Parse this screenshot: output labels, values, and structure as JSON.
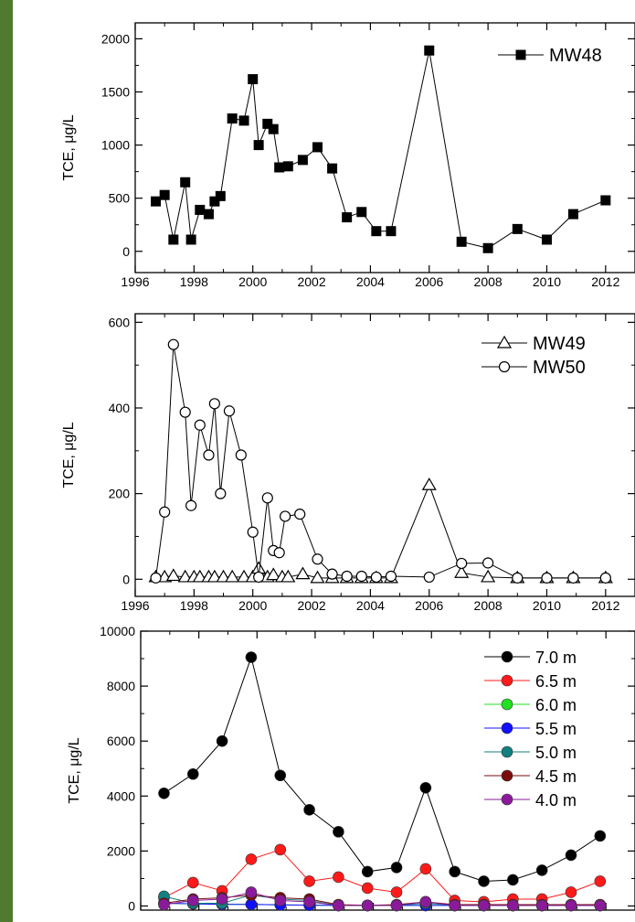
{
  "chart_data": [
    {
      "type": "line",
      "ylabel": "TCE, μg/L",
      "xlim": [
        1996,
        2013
      ],
      "ylim": [
        -200,
        2150
      ],
      "xticks": [
        1996,
        1998,
        2000,
        2002,
        2004,
        2006,
        2008,
        2010,
        2012
      ],
      "yticks": [
        0,
        500,
        1000,
        1500,
        2000
      ],
      "legend_position": "top-right",
      "series": [
        {
          "name": "MW48",
          "marker": "square",
          "filled": true,
          "color": "#000000",
          "x": [
            1996.7,
            1997.0,
            1997.3,
            1997.7,
            1997.9,
            1998.2,
            1998.5,
            1998.7,
            1998.9,
            1999.3,
            1999.7,
            2000.0,
            2000.2,
            2000.5,
            2000.7,
            2000.9,
            2001.2,
            2001.7,
            2002.2,
            2002.7,
            2003.2,
            2003.7,
            2004.2,
            2004.7,
            2006.0,
            2007.1,
            2008.0,
            2009.0,
            2010.0,
            2010.9,
            2012.0
          ],
          "y": [
            470,
            530,
            110,
            650,
            110,
            390,
            350,
            470,
            520,
            1250,
            1230,
            1620,
            1000,
            1200,
            1150,
            790,
            800,
            860,
            980,
            780,
            320,
            370,
            190,
            190,
            1890,
            90,
            30,
            210,
            110,
            350,
            480
          ]
        }
      ]
    },
    {
      "type": "line",
      "ylabel": "TCE, μg/L",
      "xlim": [
        1996,
        2013
      ],
      "ylim": [
        -40,
        620
      ],
      "xticks": [
        1996,
        1998,
        2000,
        2002,
        2004,
        2006,
        2008,
        2010,
        2012
      ],
      "yticks": [
        0,
        200,
        400,
        600
      ],
      "legend_position": "top-right",
      "series": [
        {
          "name": "MW49",
          "marker": "triangle",
          "filled": false,
          "color": "#000000",
          "x": [
            1996.7,
            1997.0,
            1997.3,
            1997.7,
            1998.0,
            1998.2,
            1998.5,
            1998.7,
            1999.0,
            1999.3,
            1999.7,
            2000.0,
            2000.2,
            2000.5,
            2000.7,
            2001.0,
            2001.2,
            2001.7,
            2002.2,
            2002.7,
            2003.2,
            2003.7,
            2004.2,
            2004.7,
            2006.0,
            2007.1,
            2008.0,
            2009.0,
            2010.0,
            2010.9,
            2012.0
          ],
          "y": [
            5,
            5,
            8,
            5,
            5,
            5,
            5,
            5,
            5,
            5,
            5,
            5,
            25,
            5,
            10,
            5,
            5,
            12,
            3,
            3,
            3,
            3,
            3,
            3,
            220,
            15,
            5,
            3,
            3,
            3,
            3
          ]
        },
        {
          "name": "MW50",
          "marker": "circle",
          "filled": false,
          "color": "#000000",
          "x": [
            1996.7,
            1997.0,
            1997.3,
            1997.7,
            1997.9,
            1998.2,
            1998.5,
            1998.7,
            1998.9,
            1999.2,
            1999.6,
            2000.0,
            2000.2,
            2000.5,
            2000.7,
            2000.9,
            2001.1,
            2001.6,
            2002.2,
            2002.7,
            2003.2,
            2003.7,
            2004.2,
            2004.7,
            2006.0,
            2007.1,
            2008.0,
            2009.0,
            2010.0,
            2010.9,
            2012.0
          ],
          "y": [
            3,
            157,
            548,
            390,
            172,
            360,
            290,
            410,
            200,
            393,
            290,
            110,
            5,
            190,
            67,
            62,
            147,
            152,
            47,
            12,
            7,
            7,
            5,
            7,
            5,
            37,
            38,
            3,
            3,
            3,
            3
          ]
        }
      ]
    },
    {
      "type": "line",
      "ylabel": "TCE, μg/L",
      "xlim": [
        1996,
        2013
      ],
      "ylim": [
        -150,
        10000
      ],
      "xticks": [
        1996,
        1998,
        2000,
        2002,
        2004,
        2006,
        2008,
        2010,
        2012
      ],
      "yticks": [
        0,
        2000,
        4000,
        6000,
        8000,
        10000
      ],
      "legend_position": "top-right",
      "categories_x": [
        2000.1,
        2001.0,
        2002.0,
        2003.0,
        2004.0,
        2005.0,
        2006.0,
        2007.0,
        2008.0,
        2009.0,
        2010.0,
        2011.0,
        2012.0,
        2012.8
      ],
      "series": [
        {
          "name": "7.0 m",
          "color": "#000000",
          "y": [
            4100,
            4800,
            6000,
            9050,
            4750,
            3500,
            2700,
            1250,
            1400,
            4300,
            1250,
            900,
            950,
            1300,
            1850,
            2550
          ]
        },
        {
          "name": "6.5 m",
          "color": "#ff1a1a",
          "y": [
            300,
            850,
            550,
            1700,
            2050,
            900,
            1050,
            650,
            500,
            1350,
            200,
            150,
            250,
            250,
            500,
            900
          ]
        },
        {
          "name": "6.0 m",
          "color": "#22e022",
          "y": [
            100,
            80,
            60,
            60,
            40,
            30,
            20,
            20,
            20,
            20,
            20,
            20,
            20,
            20,
            20,
            20
          ]
        },
        {
          "name": "5.5 m",
          "color": "#1010ff",
          "y": [
            100,
            80,
            60,
            60,
            40,
            30,
            20,
            20,
            20,
            20,
            20,
            20,
            20,
            20,
            20,
            20
          ]
        },
        {
          "name": "5.0 m",
          "color": "#138080",
          "y": [
            350,
            100,
            100,
            400,
            250,
            200,
            20,
            20,
            20,
            100,
            20,
            20,
            20,
            20,
            20,
            20
          ]
        },
        {
          "name": "4.5 m",
          "color": "#7a0b0b",
          "y": [
            100,
            250,
            300,
            400,
            300,
            250,
            50,
            20,
            50,
            150,
            50,
            50,
            50,
            50,
            50,
            50
          ]
        },
        {
          "name": "4.0 m",
          "color": "#8b1a9b",
          "y": [
            50,
            200,
            250,
            500,
            200,
            150,
            20,
            20,
            20,
            150,
            20,
            20,
            20,
            20,
            20,
            20
          ]
        }
      ],
      "x": [
        1996.8,
        1997.8,
        1998.8,
        1999.8,
        2000.8,
        2001.8,
        2002.8,
        2003.8,
        2004.8,
        2005.8,
        2006.8,
        2007.8,
        2008.8,
        2009.8,
        2010.8,
        2011.8
      ]
    }
  ]
}
